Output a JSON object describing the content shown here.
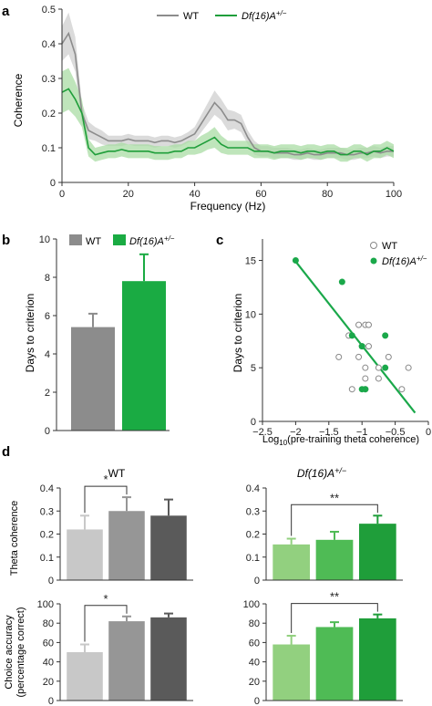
{
  "chart_data": [
    {
      "panel": "a",
      "type": "line",
      "xlabel": "Frequency (Hz)",
      "ylabel": "Coherence",
      "xlim": [
        0,
        100
      ],
      "ylim": [
        0,
        0.5
      ],
      "xticks": [
        "0",
        "20",
        "40",
        "60",
        "80",
        "100"
      ],
      "yticks": [
        "0",
        "0.1",
        "0.2",
        "0.3",
        "0.4",
        "0.5"
      ],
      "legend_position": "top",
      "series": [
        {
          "name": "WT",
          "color": "#8c8c8c",
          "band_color": "#cfcfcf",
          "x": [
            0,
            2,
            4,
            6,
            8,
            10,
            12,
            14,
            16,
            18,
            20,
            22,
            24,
            26,
            28,
            30,
            32,
            34,
            36,
            38,
            40,
            42,
            44,
            46,
            48,
            50,
            52,
            54,
            56,
            58,
            60,
            62,
            64,
            66,
            68,
            70,
            72,
            74,
            76,
            78,
            80,
            82,
            84,
            86,
            88,
            90,
            92,
            94,
            96,
            98,
            100
          ],
          "mean": [
            0.4,
            0.43,
            0.37,
            0.2,
            0.15,
            0.14,
            0.13,
            0.12,
            0.12,
            0.12,
            0.125,
            0.12,
            0.12,
            0.12,
            0.115,
            0.12,
            0.12,
            0.115,
            0.12,
            0.13,
            0.14,
            0.17,
            0.2,
            0.23,
            0.21,
            0.18,
            0.18,
            0.17,
            0.13,
            0.1,
            0.09,
            0.09,
            0.085,
            0.085,
            0.085,
            0.08,
            0.08,
            0.085,
            0.08,
            0.08,
            0.085,
            0.085,
            0.085,
            0.08,
            0.08,
            0.085,
            0.085,
            0.09,
            0.085,
            0.09,
            0.09
          ],
          "sem": [
            0.05,
            0.06,
            0.05,
            0.03,
            0.025,
            0.02,
            0.02,
            0.015,
            0.015,
            0.015,
            0.015,
            0.015,
            0.015,
            0.015,
            0.015,
            0.015,
            0.015,
            0.015,
            0.015,
            0.015,
            0.02,
            0.025,
            0.03,
            0.035,
            0.03,
            0.03,
            0.025,
            0.025,
            0.02,
            0.02,
            0.015,
            0.015,
            0.015,
            0.015,
            0.015,
            0.015,
            0.015,
            0.015,
            0.015,
            0.015,
            0.015,
            0.015,
            0.015,
            0.015,
            0.015,
            0.015,
            0.015,
            0.015,
            0.015,
            0.015,
            0.015
          ]
        },
        {
          "name": "Df(16)A+/−",
          "color": "#1f9e3a",
          "band_color": "#a9dca4",
          "x": [
            0,
            2,
            4,
            6,
            8,
            10,
            12,
            14,
            16,
            18,
            20,
            22,
            24,
            26,
            28,
            30,
            32,
            34,
            36,
            38,
            40,
            42,
            44,
            46,
            48,
            50,
            52,
            54,
            56,
            58,
            60,
            62,
            64,
            66,
            68,
            70,
            72,
            74,
            76,
            78,
            80,
            82,
            84,
            86,
            88,
            90,
            92,
            94,
            96,
            98,
            100
          ],
          "mean": [
            0.26,
            0.27,
            0.24,
            0.2,
            0.1,
            0.08,
            0.085,
            0.09,
            0.09,
            0.095,
            0.09,
            0.09,
            0.09,
            0.09,
            0.085,
            0.085,
            0.085,
            0.09,
            0.09,
            0.1,
            0.1,
            0.11,
            0.12,
            0.13,
            0.11,
            0.1,
            0.1,
            0.1,
            0.1,
            0.09,
            0.09,
            0.09,
            0.085,
            0.09,
            0.09,
            0.09,
            0.085,
            0.09,
            0.09,
            0.085,
            0.09,
            0.09,
            0.08,
            0.08,
            0.09,
            0.09,
            0.08,
            0.09,
            0.09,
            0.1,
            0.09
          ],
          "sem": [
            0.06,
            0.06,
            0.05,
            0.04,
            0.025,
            0.02,
            0.02,
            0.02,
            0.02,
            0.02,
            0.02,
            0.02,
            0.02,
            0.02,
            0.02,
            0.02,
            0.02,
            0.02,
            0.02,
            0.02,
            0.02,
            0.025,
            0.025,
            0.03,
            0.025,
            0.02,
            0.02,
            0.02,
            0.02,
            0.02,
            0.02,
            0.02,
            0.02,
            0.02,
            0.02,
            0.02,
            0.02,
            0.02,
            0.02,
            0.02,
            0.02,
            0.02,
            0.02,
            0.02,
            0.02,
            0.02,
            0.02,
            0.02,
            0.02,
            0.02,
            0.02
          ]
        }
      ]
    },
    {
      "panel": "b",
      "type": "bar",
      "ylabel": "Days to criterion",
      "ylim": [
        0,
        10
      ],
      "yticks": [
        "0",
        "2",
        "4",
        "6",
        "8",
        "10"
      ],
      "legend_position": "top",
      "categories": [
        "WT",
        "Df(16)A+/−"
      ],
      "values": [
        5.4,
        7.8
      ],
      "errors": [
        0.7,
        1.4
      ],
      "colors": [
        "#8c8c8c",
        "#1aab43"
      ]
    },
    {
      "panel": "c",
      "type": "scatter",
      "xlabel": "Log10(pre-training theta coherence)",
      "ylabel": "Days to criterion",
      "xlim": [
        -2.5,
        0
      ],
      "ylim": [
        0,
        17
      ],
      "xticks": [
        "−2.5",
        "−2",
        "−1.5",
        "−1",
        "−0.5",
        "0"
      ],
      "yticks": [
        "0",
        "5",
        "10",
        "15"
      ],
      "legend_position": "top-right",
      "series": [
        {
          "name": "WT",
          "marker": "open-circle",
          "color": "#888888",
          "points": [
            [
              -1.05,
              9
            ],
            [
              -0.95,
              9
            ],
            [
              -0.9,
              9
            ],
            [
              -1.2,
              8
            ],
            [
              -1.0,
              7
            ],
            [
              -0.9,
              7
            ],
            [
              -1.35,
              6
            ],
            [
              -1.05,
              6
            ],
            [
              -0.6,
              6
            ],
            [
              -0.95,
              5
            ],
            [
              -0.75,
              5
            ],
            [
              -0.3,
              5
            ],
            [
              -0.95,
              4
            ],
            [
              -0.75,
              4
            ],
            [
              -1.15,
              3
            ],
            [
              -0.4,
              3
            ],
            [
              -0.95,
              3
            ]
          ]
        },
        {
          "name": "Df(16)A+/−",
          "marker": "filled-circle",
          "color": "#1aa84a",
          "points": [
            [
              -2.0,
              15
            ],
            [
              -1.3,
              13
            ],
            [
              -1.15,
              8
            ],
            [
              -1.0,
              7
            ],
            [
              -0.65,
              8
            ],
            [
              -0.65,
              5
            ],
            [
              -0.95,
              3
            ],
            [
              -1.0,
              3
            ]
          ]
        }
      ],
      "fit_line": {
        "x": [
          -2.0,
          -0.2
        ],
        "y": [
          14.9,
          0.8
        ],
        "color": "#1aa84a"
      }
    },
    {
      "panel": "d",
      "type": "bar",
      "group_title": "WT",
      "ylabel": "Theta coherence",
      "ylim": [
        0,
        0.4
      ],
      "yticks": [
        "0",
        "0.1",
        "0.2",
        "0.3",
        "0.4"
      ],
      "values": [
        0.22,
        0.3,
        0.28
      ],
      "errors": [
        0.06,
        0.06,
        0.07
      ],
      "colors": [
        "#c8c8c8",
        "#969696",
        "#5a5a5a"
      ],
      "significance": {
        "from": 0,
        "to": 1,
        "label": "*"
      }
    },
    {
      "panel": "d",
      "type": "bar",
      "group_title": "Df(16)A+/−",
      "ylim": [
        0,
        0.4
      ],
      "yticks": [
        "0",
        "0.1",
        "0.2",
        "0.3",
        "0.4"
      ],
      "values": [
        0.155,
        0.175,
        0.245
      ],
      "errors": [
        0.025,
        0.035,
        0.035
      ],
      "colors": [
        "#92d07f",
        "#4fbb55",
        "#1f9e3a"
      ],
      "significance": {
        "from": 0,
        "to": 2,
        "label": "**"
      }
    },
    {
      "panel": "d",
      "type": "bar",
      "ylabel": "Choice accuracy (percentage correct)",
      "ylim": [
        0,
        100
      ],
      "yticks": [
        "0",
        "20",
        "40",
        "60",
        "80",
        "100"
      ],
      "values": [
        50,
        82,
        86
      ],
      "errors": [
        8,
        5,
        4
      ],
      "colors": [
        "#c8c8c8",
        "#969696",
        "#5a5a5a"
      ],
      "significance": {
        "from": 0,
        "to": 1,
        "label": "*"
      }
    },
    {
      "panel": "d",
      "type": "bar",
      "ylim": [
        0,
        100
      ],
      "yticks": [
        "0",
        "20",
        "40",
        "60",
        "80",
        "100"
      ],
      "values": [
        58,
        76,
        85
      ],
      "errors": [
        9,
        5,
        4
      ],
      "colors": [
        "#92d07f",
        "#4fbb55",
        "#1f9e3a"
      ],
      "significance": {
        "from": 0,
        "to": 2,
        "label": "**"
      }
    }
  ],
  "panel_labels": [
    "a",
    "b",
    "c",
    "d"
  ],
  "text": {
    "a_xlabel": "Frequency (Hz)",
    "a_ylabel": "Coherence",
    "a_legend_wt": "WT",
    "a_legend_df": "Df(16)A",
    "a_legend_df_sup": "+/−",
    "b_ylabel": "Days to criterion",
    "b_legend_wt": "WT",
    "b_legend_df": "Df(16)A",
    "b_legend_df_sup": "+/−",
    "c_ylabel": "Days to criterion",
    "c_xlabel_pre": "Log",
    "c_xlabel_sub": "10",
    "c_xlabel_post": "(pre-training theta coherence)",
    "c_legend_wt": "WT",
    "c_legend_df": "Df(16)A",
    "c_legend_df_sup": "+/−",
    "d_title_wt": "WT",
    "d_title_df": "Df(16)A",
    "d_title_df_sup": "+/−",
    "d_ylabel_theta": "Theta coherence",
    "d_ylabel_choice_1": "Choice accuracy",
    "d_ylabel_choice_2": "(percentage correct)"
  }
}
